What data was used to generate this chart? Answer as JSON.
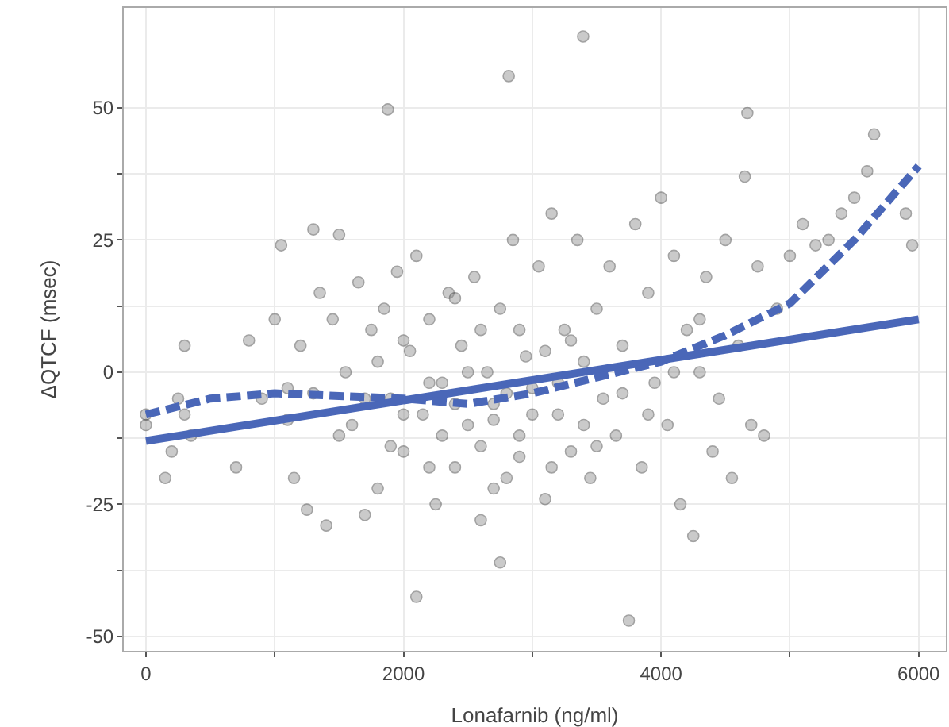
{
  "chart_data": {
    "type": "scatter",
    "xlabel": "Lonafarnib (ng/ml)",
    "ylabel": "ΔQTCF (msec)",
    "xlim": [
      -172,
      6211
    ],
    "ylim": [
      -52.7,
      68.9
    ],
    "xticks": [
      0,
      {
        "value": 1000,
        "label": null
      },
      2000,
      {
        "value": 3000,
        "label": null
      },
      4000,
      {
        "value": 5000,
        "label": null
      },
      6000
    ],
    "yticks": [
      -50,
      {
        "value": -37.5,
        "label": null
      },
      -25,
      {
        "value": -12.5,
        "label": null
      },
      0,
      {
        "value": 12.5,
        "label": null
      },
      25,
      {
        "value": 37.5,
        "label": null
      },
      50
    ],
    "grid": true,
    "marker": "circle",
    "series": [
      {
        "color": "#8c8c8c",
        "x": [
          0,
          0,
          150,
          200,
          250,
          300,
          300,
          350,
          700,
          800,
          900,
          1000,
          1050,
          1100,
          1150,
          1200,
          1250,
          1300,
          1350,
          1400,
          1450,
          1500,
          1550,
          1600,
          1650,
          1700,
          1750,
          1800,
          1850,
          1900,
          1950,
          2000,
          2050,
          2100,
          2100,
          2150,
          2200,
          2250,
          2300,
          2350,
          2400,
          2450,
          2500,
          2550,
          2600,
          2650,
          2700,
          2750,
          2750,
          2800,
          2850,
          2900,
          2950,
          3000,
          3050,
          3100,
          3150,
          3200,
          3250,
          3300,
          3350,
          3400,
          3450,
          3500,
          3550,
          3600,
          3650,
          3700,
          3750,
          3800,
          3850,
          3900,
          3950,
          4000,
          4050,
          4100,
          4150,
          4200,
          4250,
          4300,
          4350,
          4400,
          4450,
          4500,
          4550,
          4600,
          4650,
          4700,
          4750,
          4800,
          4900,
          5000,
          5100,
          5200,
          5300,
          5400,
          5500,
          5600,
          5900,
          5950,
          1700,
          1800,
          2000,
          2200,
          2300,
          2400,
          2500,
          2600,
          2700,
          2800,
          2900,
          3000,
          3100,
          3200,
          3300,
          3400,
          2600,
          2400,
          2200,
          2000,
          1900,
          3500,
          3700,
          3900,
          4100,
          4300,
          2700,
          2900,
          3150,
          1500,
          1300,
          1100,
          1878,
          3395,
          2817,
          4670,
          5654
        ],
        "values": [
          -10,
          -8,
          -20,
          -15,
          -5,
          -8,
          5,
          -12,
          -18,
          6,
          -5,
          10,
          24,
          -3,
          -20,
          5,
          -26,
          27,
          15,
          -29,
          10,
          26,
          0,
          -10,
          17,
          -27,
          8,
          -22,
          12,
          -5,
          19,
          -15,
          4,
          -42.5,
          22,
          -8,
          10,
          -25,
          -2,
          15,
          -18,
          5,
          -10,
          18,
          -28,
          0,
          -6,
          -36,
          12,
          -20,
          25,
          -12,
          3,
          -3,
          20,
          -24,
          30,
          -8,
          8,
          -15,
          25,
          2,
          -20,
          12,
          -5,
          20,
          -12,
          5,
          -47,
          28,
          -18,
          15,
          -2,
          33,
          -10,
          22,
          -25,
          8,
          -31,
          0,
          18,
          -15,
          -5,
          25,
          -20,
          5,
          37,
          -10,
          20,
          -12,
          12,
          22,
          28,
          24,
          25,
          30,
          33,
          38,
          30,
          24,
          -5,
          2,
          -8,
          -2,
          -12,
          -6,
          0,
          -14,
          -9,
          -4,
          -16,
          -8,
          4,
          -2,
          6,
          -10,
          8,
          14,
          -18,
          6,
          -14,
          -14,
          -4,
          -8,
          0,
          10,
          -22,
          8,
          -18,
          -12,
          -4,
          -9,
          49.7,
          63.5,
          56,
          49,
          45
        ]
      },
      {
        "type": "line",
        "color": "#4a67b8",
        "line_style": "solid",
        "marker": "none",
        "x": [
          0,
          6000
        ],
        "values": [
          -13,
          10
        ]
      },
      {
        "type": "line",
        "color": "#4a67b8",
        "line_style": "dashed",
        "marker": "none",
        "x": [
          0,
          500,
          1000,
          1500,
          2000,
          2500,
          3000,
          3500,
          4000,
          4500,
          5000,
          5500,
          6000
        ],
        "values": [
          -8,
          -5,
          -4,
          -4.5,
          -5,
          -6,
          -4,
          -1,
          2,
          7,
          13,
          25,
          39
        ]
      }
    ]
  }
}
